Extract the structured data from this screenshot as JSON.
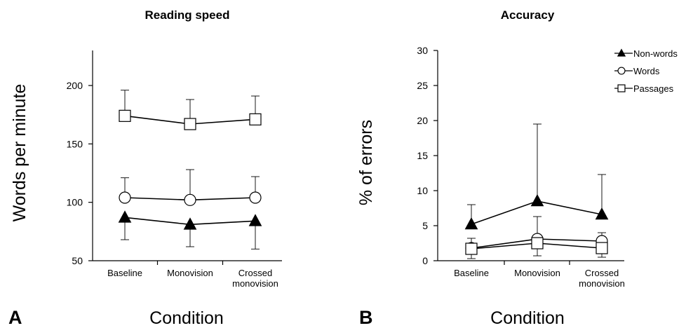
{
  "chart_data": [
    {
      "type": "line",
      "panel_label": "A",
      "title": "Reading speed",
      "xlabel": "Condition",
      "ylabel": "Words per minute",
      "categories": [
        "Baseline",
        "Monovision",
        "Crossed monovision"
      ],
      "category_lines": [
        [
          "Baseline"
        ],
        [
          "Monovision"
        ],
        [
          "Crossed",
          "monovision"
        ]
      ],
      "ylim": [
        50,
        230
      ],
      "yticks": [
        50,
        100,
        150,
        200
      ],
      "grid": false,
      "legend": "none",
      "series": [
        {
          "name": "Passages",
          "marker": "square",
          "values": [
            174,
            167,
            171
          ],
          "error_upper": [
            196,
            188,
            191
          ]
        },
        {
          "name": "Words",
          "marker": "circle",
          "values": [
            104,
            102,
            104
          ],
          "error_upper": [
            121,
            128,
            122
          ]
        },
        {
          "name": "Non-words",
          "marker": "triangle",
          "values": [
            87,
            81,
            84
          ],
          "error_lower": [
            68,
            62,
            60
          ]
        }
      ]
    },
    {
      "type": "line",
      "panel_label": "B",
      "title": "Accuracy",
      "xlabel": "Condition",
      "ylabel": "%  of errors",
      "categories": [
        "Baseline",
        "Monovision",
        "Crossed monovision"
      ],
      "category_lines": [
        [
          "Baseline"
        ],
        [
          "Monovision"
        ],
        [
          "Crossed",
          "monovision"
        ]
      ],
      "ylim": [
        0,
        30
      ],
      "yticks": [
        0,
        5,
        10,
        15,
        20,
        25,
        30
      ],
      "grid": false,
      "legend": "top-right",
      "series": [
        {
          "name": "Non-words",
          "marker": "triangle",
          "values": [
            5.2,
            8.5,
            6.6
          ],
          "error_upper": [
            8.0,
            19.5,
            12.3
          ]
        },
        {
          "name": "Words",
          "marker": "circle",
          "values": [
            1.8,
            3.1,
            2.8
          ],
          "error_upper": [
            3.2,
            6.3,
            4.0
          ]
        },
        {
          "name": "Passages",
          "marker": "square",
          "values": [
            1.7,
            2.5,
            1.8
          ],
          "error_lower": [
            0.3,
            0.7,
            0.5
          ]
        }
      ]
    }
  ]
}
